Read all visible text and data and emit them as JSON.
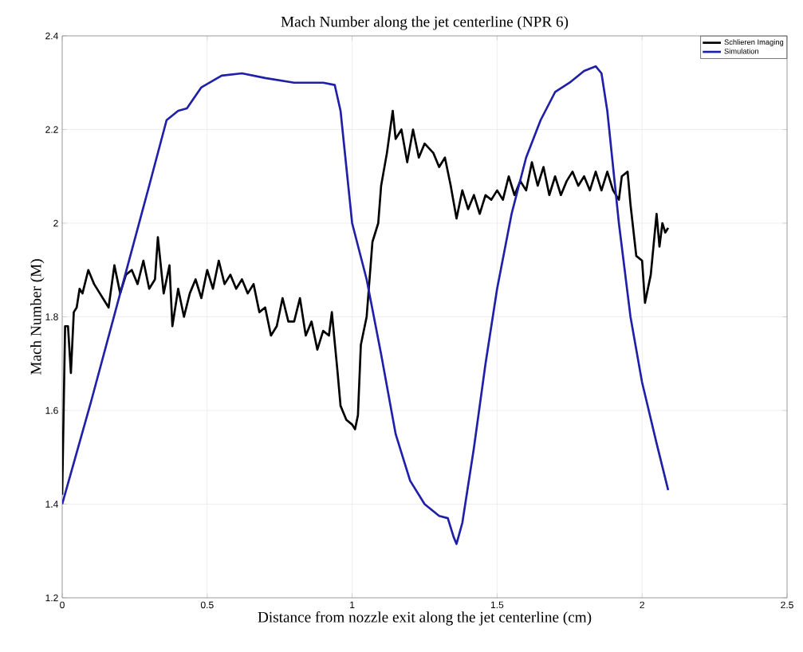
{
  "chart_data": {
    "type": "line",
    "title": "Mach Number along the jet centerline (NPR 6)",
    "xlabel": "Distance from nozzle exit along the jet centerline (cm)",
    "ylabel": "Mach Number (M)",
    "xlim": [
      0,
      2.5
    ],
    "ylim": [
      1.2,
      2.4
    ],
    "xticks": [
      0,
      0.5,
      1,
      1.5,
      2,
      2.5
    ],
    "yticks": [
      1.2,
      1.4,
      1.6,
      1.8,
      2,
      2.2,
      2.4
    ],
    "grid": true,
    "legend": "top right",
    "line_style": "solid",
    "marker": "none",
    "series": [
      {
        "name": "Schlieren Imaging",
        "color": "#000000",
        "x": [
          0,
          0.005,
          0.01,
          0.02,
          0.03,
          0.04,
          0.05,
          0.06,
          0.07,
          0.09,
          0.11,
          0.13,
          0.14,
          0.16,
          0.18,
          0.2,
          0.22,
          0.24,
          0.26,
          0.28,
          0.3,
          0.32,
          0.33,
          0.35,
          0.37,
          0.38,
          0.4,
          0.42,
          0.44,
          0.46,
          0.48,
          0.5,
          0.52,
          0.54,
          0.56,
          0.58,
          0.6,
          0.62,
          0.64,
          0.66,
          0.68,
          0.7,
          0.72,
          0.74,
          0.76,
          0.78,
          0.8,
          0.82,
          0.84,
          0.86,
          0.88,
          0.9,
          0.92,
          0.93,
          0.95,
          0.96,
          0.98,
          1.0,
          1.01,
          1.02,
          1.03,
          1.05,
          1.07,
          1.09,
          1.1,
          1.12,
          1.14,
          1.15,
          1.17,
          1.19,
          1.21,
          1.23,
          1.25,
          1.28,
          1.3,
          1.32,
          1.34,
          1.36,
          1.38,
          1.4,
          1.42,
          1.44,
          1.46,
          1.48,
          1.5,
          1.52,
          1.54,
          1.56,
          1.58,
          1.6,
          1.62,
          1.64,
          1.66,
          1.68,
          1.7,
          1.72,
          1.74,
          1.76,
          1.78,
          1.8,
          1.82,
          1.84,
          1.86,
          1.88,
          1.9,
          1.92,
          1.93,
          1.95,
          1.96,
          1.98,
          2.0,
          2.01,
          2.03,
          2.05,
          2.06,
          2.07,
          2.08,
          2.09
        ],
        "values": [
          1.42,
          1.6,
          1.78,
          1.78,
          1.68,
          1.81,
          1.82,
          1.86,
          1.85,
          1.9,
          1.87,
          1.85,
          1.84,
          1.82,
          1.91,
          1.85,
          1.89,
          1.9,
          1.87,
          1.92,
          1.86,
          1.88,
          1.97,
          1.85,
          1.91,
          1.78,
          1.86,
          1.8,
          1.85,
          1.88,
          1.84,
          1.9,
          1.86,
          1.92,
          1.87,
          1.89,
          1.86,
          1.88,
          1.85,
          1.87,
          1.81,
          1.82,
          1.76,
          1.78,
          1.84,
          1.79,
          1.79,
          1.84,
          1.76,
          1.79,
          1.73,
          1.77,
          1.76,
          1.81,
          1.68,
          1.61,
          1.58,
          1.57,
          1.56,
          1.59,
          1.74,
          1.8,
          1.96,
          2.0,
          2.08,
          2.15,
          2.24,
          2.18,
          2.2,
          2.13,
          2.2,
          2.14,
          2.17,
          2.15,
          2.12,
          2.14,
          2.08,
          2.01,
          2.07,
          2.03,
          2.06,
          2.02,
          2.06,
          2.05,
          2.07,
          2.05,
          2.1,
          2.06,
          2.09,
          2.07,
          2.13,
          2.08,
          2.12,
          2.06,
          2.1,
          2.06,
          2.09,
          2.11,
          2.08,
          2.1,
          2.07,
          2.11,
          2.07,
          2.11,
          2.07,
          2.05,
          2.1,
          2.11,
          2.04,
          1.93,
          1.92,
          1.83,
          1.89,
          2.02,
          1.95,
          2.0,
          1.98,
          1.99
        ]
      },
      {
        "name": "Simulation",
        "color": "#1f1fa8",
        "x": [
          0,
          0.1,
          0.2,
          0.3,
          0.36,
          0.4,
          0.43,
          0.48,
          0.55,
          0.62,
          0.7,
          0.8,
          0.9,
          0.94,
          0.96,
          0.98,
          1.0,
          1.05,
          1.1,
          1.15,
          1.2,
          1.25,
          1.3,
          1.33,
          1.35,
          1.36,
          1.38,
          1.42,
          1.46,
          1.5,
          1.55,
          1.6,
          1.65,
          1.7,
          1.75,
          1.8,
          1.84,
          1.86,
          1.88,
          1.92,
          1.96,
          2.0,
          2.05,
          2.09
        ],
        "values": [
          1.4,
          1.62,
          1.85,
          2.08,
          2.22,
          2.24,
          2.245,
          2.29,
          2.315,
          2.32,
          2.31,
          2.3,
          2.3,
          2.295,
          2.24,
          2.12,
          2.0,
          1.88,
          1.72,
          1.55,
          1.45,
          1.4,
          1.375,
          1.37,
          1.33,
          1.315,
          1.36,
          1.52,
          1.7,
          1.86,
          2.02,
          2.14,
          2.22,
          2.28,
          2.3,
          2.325,
          2.335,
          2.32,
          2.24,
          2.0,
          1.8,
          1.66,
          1.53,
          1.43
        ]
      }
    ]
  }
}
